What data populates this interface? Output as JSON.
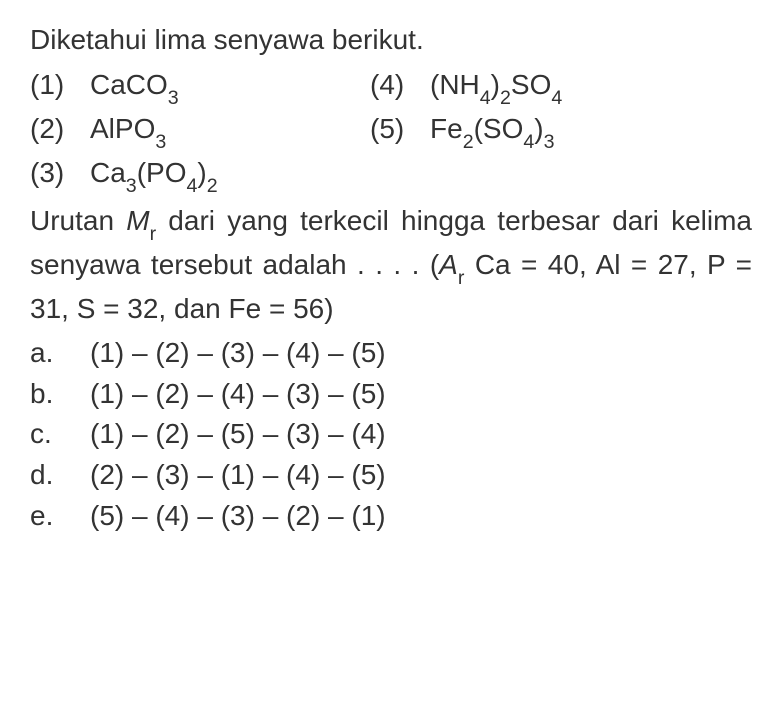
{
  "colors": {
    "background": "#ffffff",
    "text": "#333333"
  },
  "typography": {
    "font_family": "Arial, Helvetica, sans-serif",
    "font_size_pt": 28,
    "line_height": 1.45
  },
  "intro": "Diketahui lima senyawa berikut.",
  "compounds": [
    {
      "num": "(1)",
      "formula_parts": [
        "CaCO",
        {
          "sub": "3"
        }
      ]
    },
    {
      "num": "(2)",
      "formula_parts": [
        "AlPO",
        {
          "sub": "3"
        }
      ]
    },
    {
      "num": "(3)",
      "formula_parts": [
        "Ca",
        {
          "sub": "3"
        },
        "(PO",
        {
          "sub": "4"
        },
        ")",
        {
          "sub": "2"
        }
      ]
    },
    {
      "num": "(4)",
      "formula_parts": [
        "(NH",
        {
          "sub": "4"
        },
        ")",
        {
          "sub": "2"
        },
        "SO",
        {
          "sub": "4"
        }
      ]
    },
    {
      "num": "(5)",
      "formula_parts": [
        "Fe",
        {
          "sub": "2"
        },
        "(SO",
        {
          "sub": "4"
        },
        ")",
        {
          "sub": "3"
        }
      ]
    }
  ],
  "compound_layout": [
    [
      0,
      3
    ],
    [
      1,
      4
    ],
    [
      2
    ]
  ],
  "question": {
    "line1_pre": "Urutan ",
    "mr_m": "M",
    "mr_r": "r",
    "line1_post": " dari yang terkecil hingga terbesar dari kelima senyawa tersebut adalah . . . . (",
    "ar_a": "A",
    "ar_r": "r",
    "constants": " Ca = 40, Al = 27, P = 31, S = 32, dan Fe = 56)"
  },
  "options": [
    {
      "letter": "a.",
      "text": "(1) – (2) – (3) – (4) – (5)"
    },
    {
      "letter": "b.",
      "text": "(1) – (2) – (4) – (3) – (5)"
    },
    {
      "letter": "c.",
      "text": "(1) – (2) – (5) – (3) – (4)"
    },
    {
      "letter": "d.",
      "text": "(2) – (3) – (1) – (4) – (5)"
    },
    {
      "letter": "e.",
      "text": "(5) – (4) – (3) – (2) – (1)"
    }
  ]
}
